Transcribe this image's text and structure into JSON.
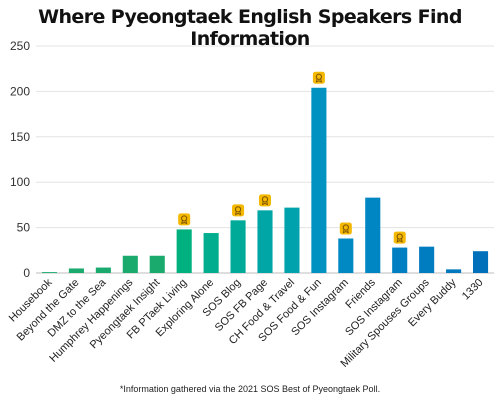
{
  "chart_data": {
    "type": "bar",
    "title": "Where Pyeongtaek English Speakers Find Information",
    "categories": [
      "Housebook",
      "Beyond the Gate",
      "DMZ to the Sea",
      "Humphrey Happenings",
      "Pyeongtaek Insight",
      "FB PTaek Living",
      "Exploring Alone",
      "SOS Blog",
      "SOS FB Page",
      "CH Food & Travel",
      "SOS Food & Fun",
      "SOS Instagram",
      "Friends",
      "SOS Instagram",
      "Military Spouses Groups",
      "Every Buddy",
      "1330"
    ],
    "values": [
      1,
      5,
      6,
      19,
      19,
      48,
      44,
      58,
      69,
      72,
      204,
      38,
      83,
      28,
      29,
      4,
      24
    ],
    "colors": [
      "#1aaa6e",
      "#1aaa6e",
      "#1aaa6e",
      "#1aaa6e",
      "#1aaa6e",
      "#00b07e",
      "#00ad8e",
      "#00aa98",
      "#00a6a6",
      "#00a3ad",
      "#0093c2",
      "#0089c3",
      "#0086c3",
      "#0080c3",
      "#007cc0",
      "#0078be",
      "#0070bb"
    ],
    "award_badges": [
      false,
      false,
      false,
      false,
      false,
      true,
      false,
      true,
      true,
      false,
      true,
      true,
      false,
      true,
      false,
      false,
      false
    ],
    "badge_icon": "award-ribbon-icon",
    "badge_color": "#f5b800",
    "ylim": [
      0,
      250
    ],
    "yticks": [
      0,
      50,
      100,
      150,
      200,
      250
    ],
    "grid": true,
    "xlabel": "",
    "ylabel": ""
  },
  "footnote": "*Information gathered via the 2021 SOS Best of Pyeongtaek Poll."
}
